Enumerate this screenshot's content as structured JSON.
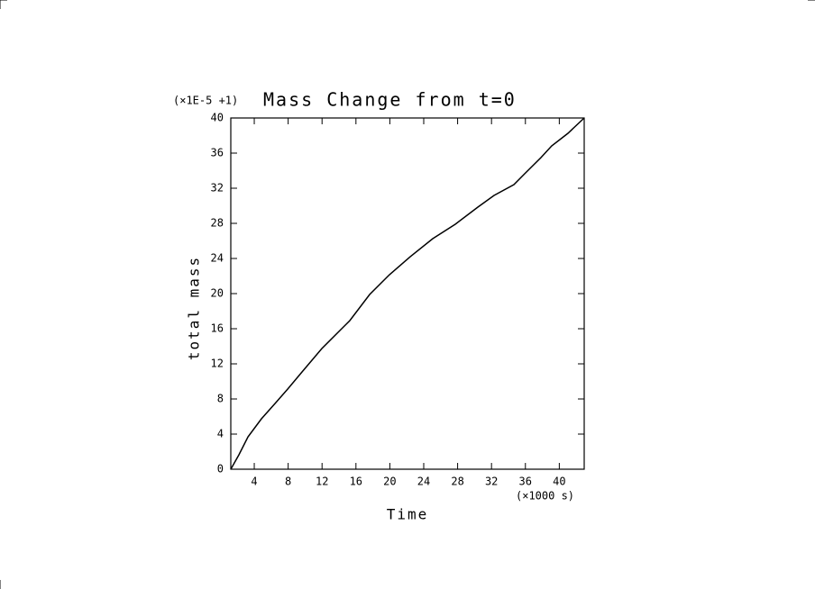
{
  "chart_data": {
    "type": "line",
    "title": "Mass Change from t=0",
    "y_scale_note": "(×1E-5 +1)",
    "x_unit_note": "(×1000 s)",
    "x_label": "Time",
    "y_label": "total mass",
    "x": [
      1.23,
      2.19,
      3.26,
      4.85,
      6.45,
      7.94,
      9.64,
      11.98,
      13.89,
      15.28,
      17.62,
      19.96,
      22.4,
      25.06,
      27.72,
      30.38,
      32.3,
      34.64,
      35.91,
      37.83,
      39.1,
      41.02,
      42.94
    ],
    "series": [
      {
        "name": "total mass",
        "color": "#000000",
        "values": [
          0,
          1.64,
          3.69,
          5.74,
          7.49,
          9.13,
          11.08,
          13.74,
          15.59,
          16.92,
          19.9,
          22.15,
          24.2,
          26.26,
          27.9,
          29.85,
          31.18,
          32.41,
          33.64,
          35.49,
          36.82,
          38.26,
          40
        ]
      }
    ],
    "xlim": [
      1.23,
      42.94
    ],
    "ylim": [
      0,
      40
    ],
    "xticks": [
      4,
      8,
      12,
      16,
      20,
      24,
      28,
      32,
      36,
      40
    ],
    "yticks": [
      0,
      4,
      8,
      12,
      16,
      20,
      24,
      28,
      32,
      36,
      40
    ]
  }
}
